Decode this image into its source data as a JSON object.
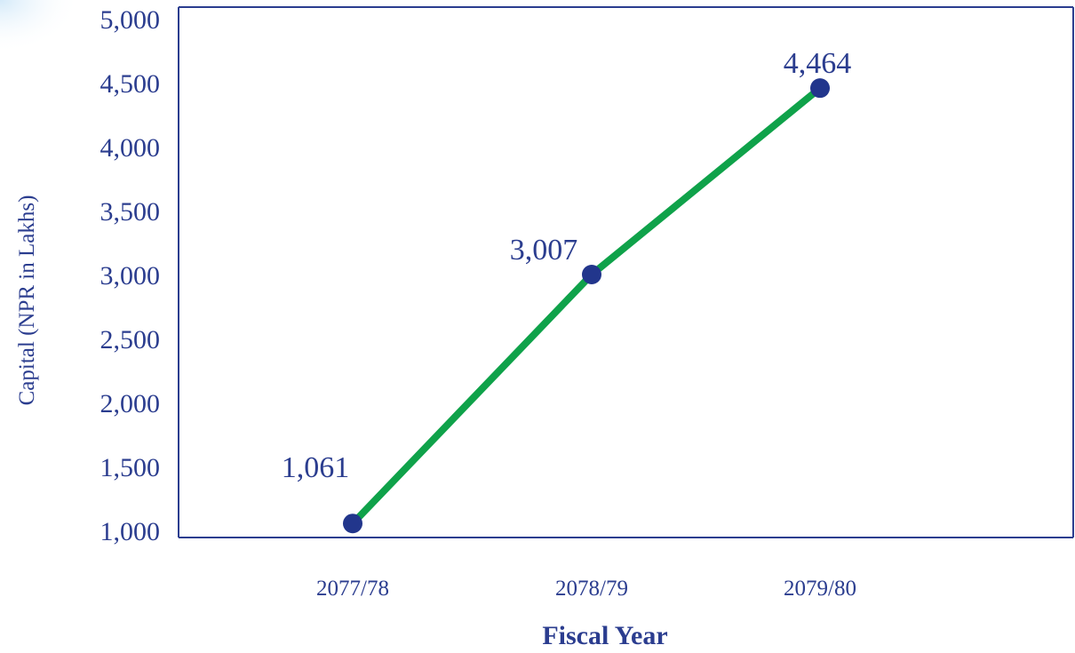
{
  "colors": {
    "text": "#2b3d8f",
    "axis": "#2b3d8f",
    "line": "#0fa24a",
    "marker": "#22368c",
    "background": "#ffffff",
    "corner_wash": "#dbeefa"
  },
  "chart_data": {
    "type": "line",
    "title": "",
    "xlabel": "Fiscal Year",
    "ylabel": "Capital (NPR in Lakhs)",
    "categories": [
      "2077/78",
      "2078/79",
      "2079/80"
    ],
    "series": [
      {
        "values": [
          1061,
          3007,
          4464
        ],
        "data_labels": [
          "1,061",
          "3,007",
          "4,464"
        ]
      }
    ],
    "ylim": [
      1000,
      5000
    ],
    "yticks": [
      1000,
      1500,
      2000,
      2500,
      3000,
      3500,
      4000,
      4500,
      5000
    ],
    "ytick_labels": [
      "1,000",
      "1,500",
      "2,000",
      "2,500",
      "3,000",
      "3,500",
      "4,000",
      "4,500",
      "5,000"
    ],
    "grid": false,
    "legend": "none"
  }
}
